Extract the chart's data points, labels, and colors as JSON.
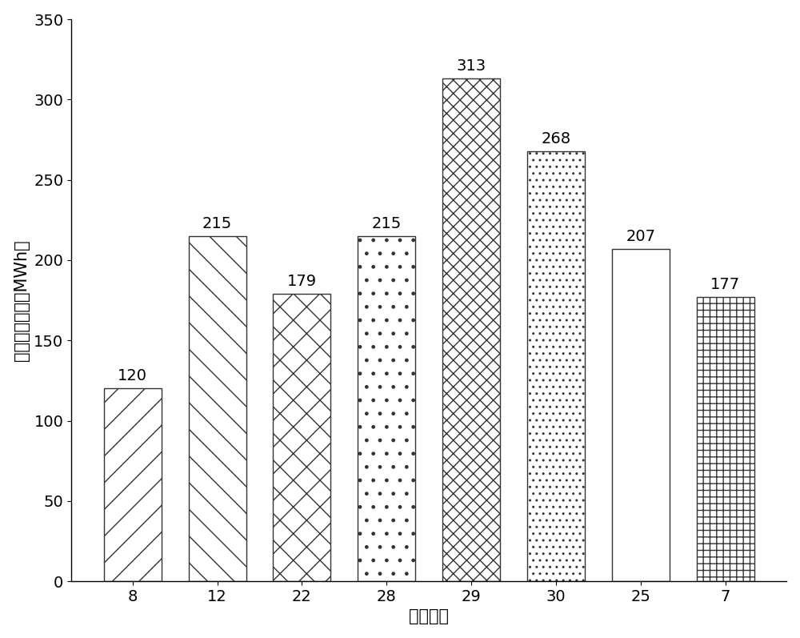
{
  "categories": [
    "8",
    "12",
    "22",
    "28",
    "29",
    "30",
    "25",
    "7"
  ],
  "values": [
    120,
    215,
    179,
    215,
    313,
    268,
    207,
    177
  ],
  "xlabel": "节点编号",
  "ylabel": "储能电站容量（MWh）",
  "ylim": [
    0,
    350
  ],
  "yticks": [
    0,
    50,
    100,
    150,
    200,
    250,
    300,
    350
  ],
  "bar_facecolor": "white",
  "bar_edgecolor": "#333333",
  "label_fontsize": 15,
  "tick_fontsize": 14,
  "value_fontsize": 14,
  "bar_linewidth": 1.0,
  "figsize": [
    10.0,
    7.97
  ],
  "dpi": 100
}
